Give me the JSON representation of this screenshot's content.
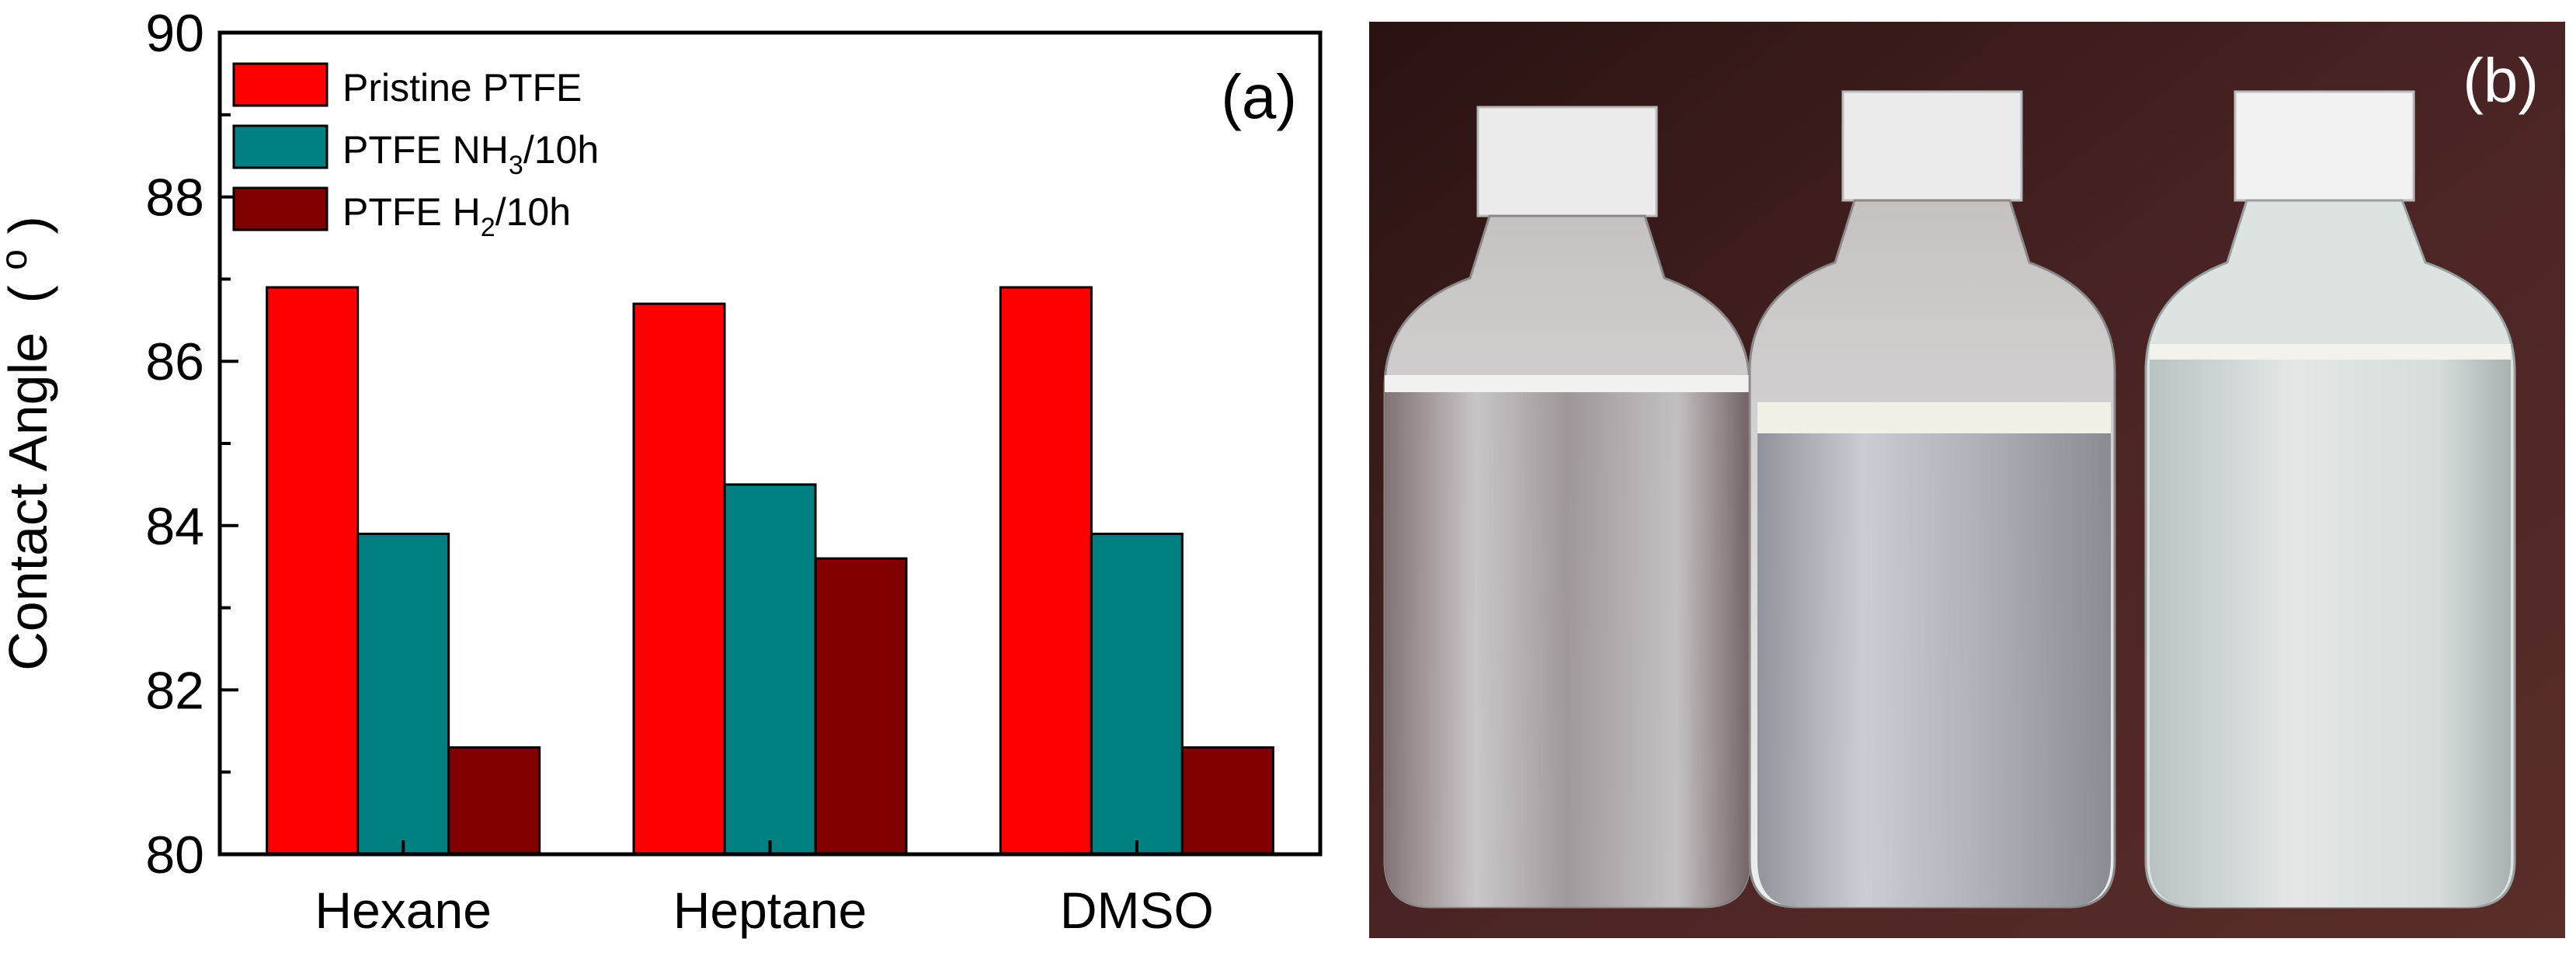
{
  "chart_data": {
    "type": "bar",
    "panel_label": "(a)",
    "ylabel": "Contact Angle",
    "ylabel_unit": "(o)",
    "ylabel_unit_base": "(",
    "ylabel_unit_sup": "o",
    "ylabel_unit_close": ")",
    "ylim": [
      80,
      90
    ],
    "yticks": [
      "80",
      "82",
      "84",
      "86",
      "88",
      "90"
    ],
    "categories": [
      "Hexane",
      "Heptane",
      "DMSO"
    ],
    "series": [
      {
        "name": "Pristine PTFE",
        "name_base": "Pristine PTFE",
        "name_sub": "",
        "name_tail": "",
        "color": "#ff0000",
        "values": [
          86.9,
          86.7,
          86.9
        ]
      },
      {
        "name": "PTFE NH3/10h",
        "name_base": "PTFE NH",
        "name_sub": "3",
        "name_tail": "/10h",
        "color": "#008080",
        "values": [
          83.9,
          84.5,
          83.9
        ]
      },
      {
        "name": "PTFE H2/10h",
        "name_base": "PTFE H",
        "name_sub": "2",
        "name_tail": "/10h",
        "color": "#800000",
        "values": [
          81.3,
          83.6,
          81.3
        ]
      }
    ],
    "legend_position": "top-left",
    "grid": false
  },
  "photo": {
    "panel_label": "(b)",
    "bottle_count": 3
  }
}
